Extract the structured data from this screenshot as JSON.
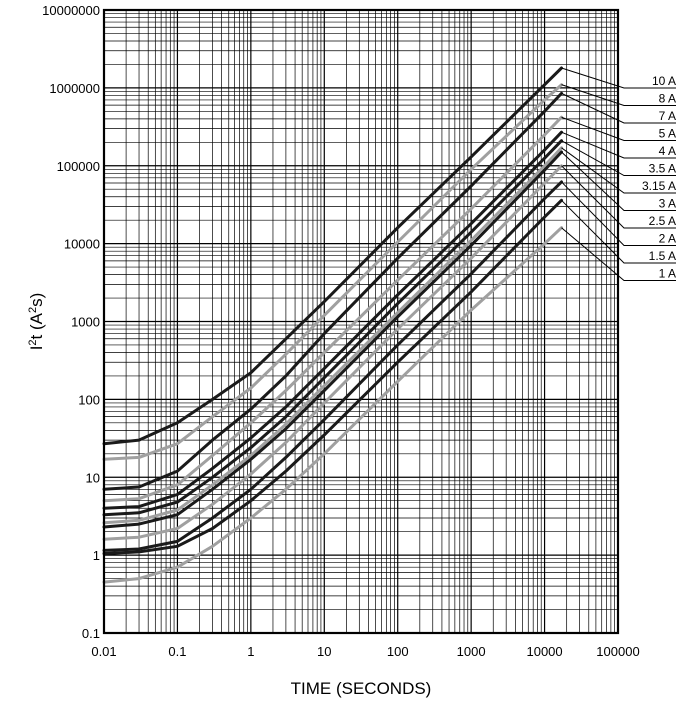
{
  "chart_data": {
    "type": "line",
    "xlabel": "TIME (SECONDS)",
    "ylabel_main": "I",
    "ylabel_sup1": "2",
    "ylabel_mid": "t (A",
    "ylabel_sup2": "2",
    "ylabel_end": "s)",
    "x_scale": "log",
    "y_scale": "log",
    "xlim": [
      0.01,
      100000
    ],
    "ylim": [
      0.1,
      10000000
    ],
    "grid": true,
    "legend_placement": "right",
    "x_tick_labels": [
      "0.01",
      "0.1",
      "1",
      "10",
      "100",
      "1000",
      "10000",
      "100000"
    ],
    "y_tick_labels": [
      "0.1",
      "1",
      "10",
      "100",
      "1000",
      "10000",
      "100000",
      "1000000",
      "10000000"
    ],
    "colors": {
      "dark": "#1a1a1a",
      "light": "#a0a0a0",
      "grid": "#000000"
    },
    "series": [
      {
        "name": "10 A",
        "shade": "dark",
        "x": [
          0.01,
          0.03,
          0.1,
          0.3,
          1,
          3,
          10,
          100,
          1000,
          10000,
          17000
        ],
        "y": [
          27,
          30,
          50,
          100,
          220,
          600,
          1800,
          16000,
          130000,
          1100000,
          1800000
        ]
      },
      {
        "name": "8 A",
        "shade": "light",
        "x": [
          0.01,
          0.03,
          0.1,
          0.3,
          1,
          3,
          10,
          100,
          1000,
          10000,
          17000
        ],
        "y": [
          17,
          18,
          27,
          60,
          140,
          380,
          1200,
          10500,
          90000,
          700000,
          1100000
        ]
      },
      {
        "name": "7 A",
        "shade": "dark",
        "x": [
          0.01,
          0.03,
          0.1,
          0.3,
          1,
          3,
          10,
          100,
          1000,
          10000,
          17000
        ],
        "y": [
          7,
          7.5,
          12,
          30,
          75,
          200,
          700,
          6500,
          55000,
          500000,
          850000
        ]
      },
      {
        "name": "5 A",
        "shade": "light",
        "x": [
          0.01,
          0.03,
          0.1,
          0.3,
          1,
          3,
          10,
          100,
          1000,
          10000,
          17000
        ],
        "y": [
          5,
          5.3,
          8,
          19,
          50,
          130,
          400,
          3400,
          28000,
          250000,
          420000
        ]
      },
      {
        "name": "4 A",
        "shade": "dark",
        "x": [
          0.01,
          0.03,
          0.1,
          0.3,
          1,
          3,
          10,
          100,
          1000,
          10000,
          17000
        ],
        "y": [
          4,
          4.2,
          6,
          13,
          32,
          80,
          250,
          2200,
          18000,
          160000,
          270000
        ]
      },
      {
        "name": "3.5 A",
        "shade": "dark",
        "x": [
          0.01,
          0.03,
          0.1,
          0.3,
          1,
          3,
          10,
          100,
          1000,
          10000,
          17000
        ],
        "y": [
          3.3,
          3.5,
          4.8,
          10,
          24,
          60,
          190,
          1700,
          14000,
          125000,
          210000
        ]
      },
      {
        "name": "3.15 A",
        "shade": "light",
        "x": [
          0.01,
          0.03,
          0.1,
          0.3,
          1,
          3,
          10,
          100,
          1000,
          10000,
          17000
        ],
        "y": [
          2.6,
          2.8,
          3.8,
          8,
          19,
          48,
          150,
          1300,
          11000,
          100000,
          170000
        ]
      },
      {
        "name": "3 A",
        "shade": "dark",
        "x": [
          0.01,
          0.03,
          0.1,
          0.3,
          1,
          3,
          10,
          100,
          1000,
          10000,
          17000
        ],
        "y": [
          2.3,
          2.5,
          3.3,
          7,
          17,
          42,
          130,
          1150,
          9500,
          88000,
          150000
        ]
      },
      {
        "name": "2.5 A",
        "shade": "light",
        "x": [
          0.01,
          0.03,
          0.1,
          0.3,
          1,
          3,
          10,
          100,
          1000,
          10000,
          17000
        ],
        "y": [
          1.6,
          1.7,
          2.2,
          4.5,
          11,
          28,
          90,
          800,
          6500,
          60000,
          100000
        ]
      },
      {
        "name": "2 A",
        "shade": "dark",
        "x": [
          0.01,
          0.03,
          0.1,
          0.3,
          1,
          3,
          10,
          100,
          1000,
          10000,
          17000
        ],
        "y": [
          1.15,
          1.2,
          1.5,
          3,
          7,
          18,
          55,
          500,
          4100,
          38000,
          62000
        ]
      },
      {
        "name": "1.5 A",
        "shade": "dark",
        "x": [
          0.01,
          0.03,
          0.1,
          0.3,
          1,
          3,
          10,
          100,
          1000,
          10000,
          17000
        ],
        "y": [
          1.05,
          1.1,
          1.3,
          2.2,
          5,
          12,
          35,
          300,
          2400,
          22000,
          36000
        ]
      },
      {
        "name": "1 A",
        "shade": "light",
        "x": [
          0.01,
          0.03,
          0.1,
          0.3,
          1,
          3,
          10,
          100,
          1000,
          10000,
          17000
        ],
        "y": [
          0.45,
          0.5,
          0.7,
          1.3,
          3,
          7,
          20,
          170,
          1400,
          10000,
          16000
        ]
      }
    ]
  }
}
